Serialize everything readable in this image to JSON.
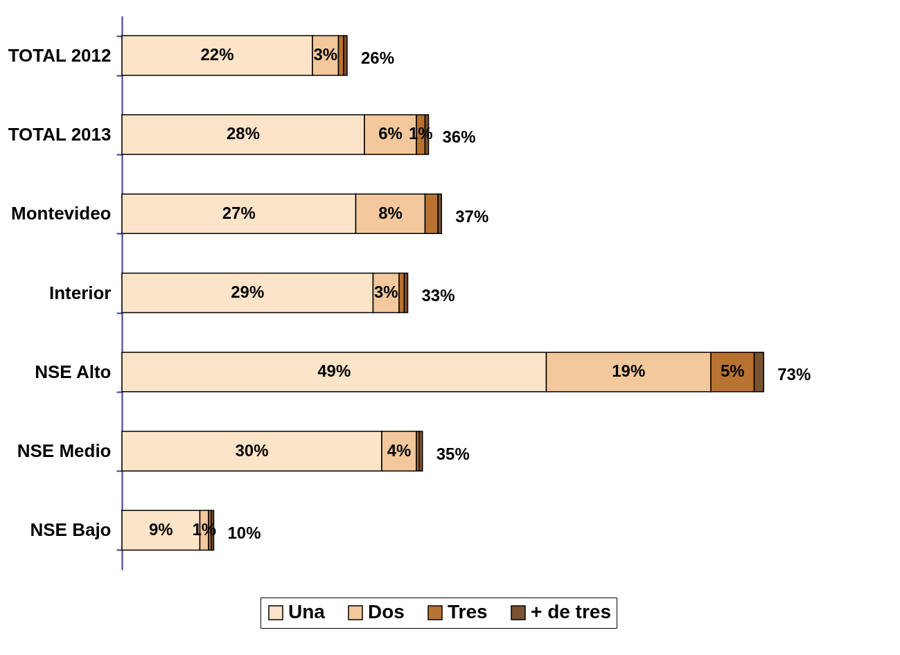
{
  "chart_data": {
    "type": "bar",
    "orientation": "horizontal",
    "stacked": true,
    "tick_labels": "y",
    "legend": "bottom",
    "categories": [
      "TOTAL 2012",
      "TOTAL 2013",
      "Montevideo",
      "Interior",
      "NSE Alto",
      "NSE Medio",
      "NSE Bajo"
    ],
    "series": [
      {
        "name": "Una",
        "color": "#fce4c8",
        "values": [
          22,
          28,
          27,
          29,
          49,
          30,
          9
        ],
        "value_labels": [
          "22%",
          "28%",
          "27%",
          "29%",
          "49%",
          "30%",
          "9%"
        ]
      },
      {
        "name": "Dos",
        "color": "#f2c89c",
        "values": [
          3,
          6,
          8,
          3,
          19,
          4,
          1
        ],
        "value_labels": [
          "3%",
          "6%",
          "8%",
          "3%",
          "19%",
          "4%",
          "1%"
        ]
      },
      {
        "name": "Tres",
        "color": "#b87333",
        "values": [
          0.6,
          1,
          1.5,
          0.6,
          5,
          0.3,
          0.3
        ],
        "value_labels": [
          null,
          "1%",
          null,
          null,
          "5%",
          null,
          null
        ]
      },
      {
        "name": "+ de tres",
        "color": "#7b5230",
        "values": [
          0.4,
          0.4,
          0.4,
          0.4,
          1.1,
          0.4,
          0.3
        ],
        "value_labels": [
          null,
          null,
          null,
          null,
          null,
          null,
          null
        ]
      }
    ],
    "totals": [
      "26%",
      "36%",
      "37%",
      "33%",
      "73%",
      "35%",
      "10%"
    ]
  }
}
